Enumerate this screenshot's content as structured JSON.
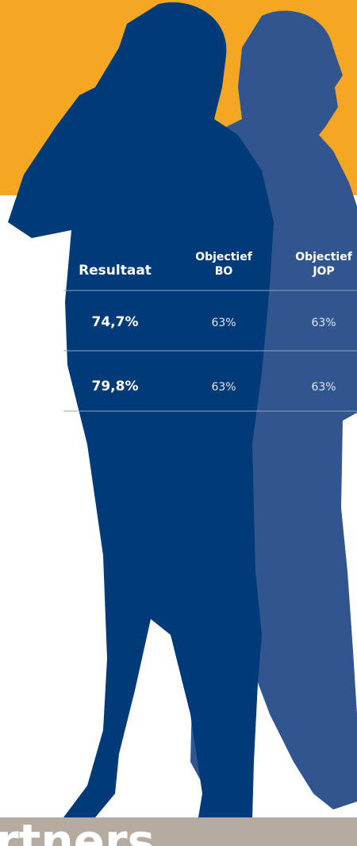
{
  "table": {
    "header": [
      [
        "Resultaat"
      ],
      [
        "Objectief",
        "BO"
      ],
      [
        "Objectief",
        "JOP"
      ]
    ],
    "rows": [
      [
        "74,7%",
        "63%",
        "63%"
      ],
      [
        "79,8%",
        "63%",
        "63%"
      ]
    ]
  },
  "footer": {
    "text": "rtners"
  }
}
